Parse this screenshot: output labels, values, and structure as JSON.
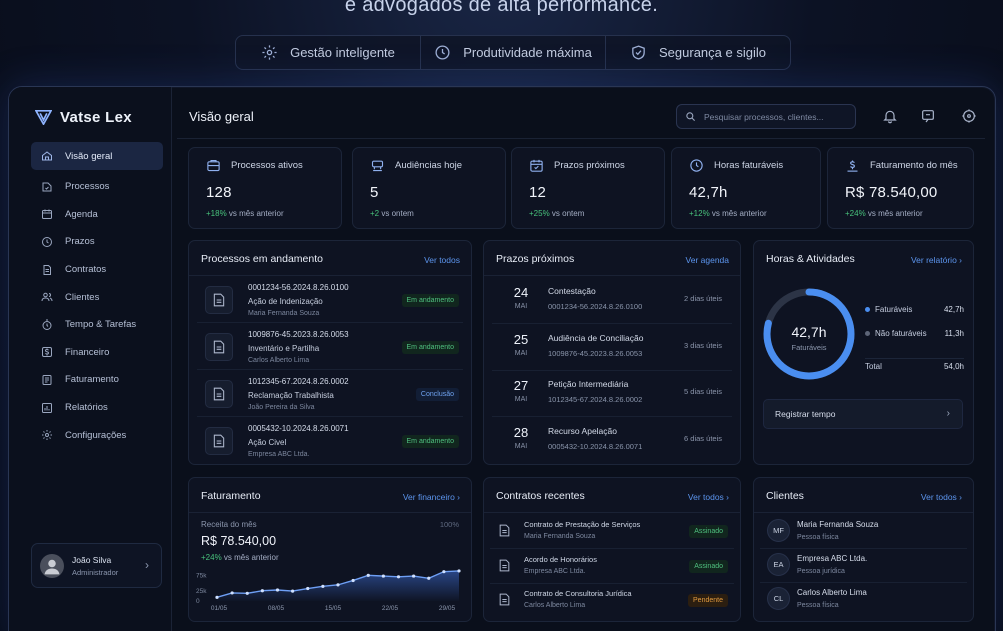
{
  "hero": {
    "subtitle": "e advogados de alta performance.",
    "features": [
      {
        "label": "Gestão inteligente",
        "icon": "gear-icon"
      },
      {
        "label": "Produtividade máxima",
        "icon": "target-icon"
      },
      {
        "label": "Segurança e sigilo",
        "icon": "shield-check-icon"
      }
    ]
  },
  "brand": {
    "name": "Vatse Lex"
  },
  "sidebar": {
    "items": [
      {
        "label": "Visão geral",
        "icon": "home-icon",
        "active": true
      },
      {
        "label": "Processos",
        "icon": "folder-icon"
      },
      {
        "label": "Agenda",
        "icon": "calendar-icon"
      },
      {
        "label": "Prazos",
        "icon": "clock-icon"
      },
      {
        "label": "Contratos",
        "icon": "document-icon"
      },
      {
        "label": "Clientes",
        "icon": "users-icon"
      },
      {
        "label": "Tempo & Tarefas",
        "icon": "timer-icon"
      },
      {
        "label": "Financeiro",
        "icon": "dollar-icon"
      },
      {
        "label": "Faturamento",
        "icon": "invoice-icon"
      },
      {
        "label": "Relatórios",
        "icon": "bar-chart-icon"
      },
      {
        "label": "Configurações",
        "icon": "settings-icon"
      }
    ],
    "user": {
      "name": "João Silva",
      "role": "Administrador"
    }
  },
  "header": {
    "title": "Visão geral",
    "search_placeholder": "Pesquisar processos, clientes..."
  },
  "stats": [
    {
      "label": "Processos ativos",
      "value": "128",
      "delta": "+18%",
      "delta_text": "vs mês anterior",
      "icon": "briefcase-icon"
    },
    {
      "label": "Audiências hoje",
      "value": "5",
      "delta": "+2",
      "delta_text": "vs ontem",
      "icon": "gavel-icon"
    },
    {
      "label": "Prazos próximos",
      "value": "12",
      "delta": "+25%",
      "delta_text": "vs ontem",
      "icon": "calendar-check-icon"
    },
    {
      "label": "Horas faturáveis",
      "value": "42,7h",
      "delta": "+12%",
      "delta_text": "vs mês anterior",
      "icon": "clock-icon"
    },
    {
      "label": "Faturamento do mês",
      "value": "R$ 78.540,00",
      "delta": "+24%",
      "delta_text": "vs mês anterior",
      "icon": "money-icon"
    }
  ],
  "processes": {
    "title": "Processos em andamento",
    "link": "Ver todos",
    "rows": [
      {
        "number": "0001234-56.2024.8.26.0100",
        "title": "Ação de Indenização",
        "client": "Maria Fernanda Souza",
        "status": "Em andamento",
        "tone": "green"
      },
      {
        "number": "1009876-45.2023.8.26.0053",
        "title": "Inventário e Partilha",
        "client": "Carlos Alberto Lima",
        "status": "Em andamento",
        "tone": "green"
      },
      {
        "number": "1012345-67.2024.8.26.0002",
        "title": "Reclamação Trabalhista",
        "client": "João Pereira da Silva",
        "status": "Conclusão",
        "tone": "blue"
      },
      {
        "number": "0005432-10.2024.8.26.0071",
        "title": "Ação Civel",
        "client": "Empresa ABC Ltda.",
        "status": "Em andamento",
        "tone": "green"
      }
    ]
  },
  "deadlines": {
    "title": "Prazos próximos",
    "link": "Ver agenda",
    "rows": [
      {
        "day": "24",
        "month": "MAI",
        "title": "Contestação",
        "process": "0001234-56.2024.8.26.0100",
        "days": "2 dias úteis"
      },
      {
        "day": "25",
        "month": "MAI",
        "title": "Audiência de Conciliação",
        "process": "1009876-45.2023.8.26.0053",
        "days": "3 dias úteis"
      },
      {
        "day": "27",
        "month": "MAI",
        "title": "Petição Intermediária",
        "process": "1012345-67.2024.8.26.0002",
        "days": "5 dias úteis"
      },
      {
        "day": "28",
        "month": "MAI",
        "title": "Recurso Apelação",
        "process": "0005432-10.2024.8.26.0071",
        "days": "6 dias úteis"
      }
    ]
  },
  "hours": {
    "title": "Horas & Atividades",
    "link": "Ver relatório ›",
    "center_value": "42,7h",
    "center_label": "Faturáveis",
    "billable_fraction": 0.79,
    "legend": [
      {
        "label": "Faturáveis",
        "value": "42,7h",
        "color": "#4a8ef0"
      },
      {
        "label": "Não faturáveis",
        "value": "11,3h",
        "color": "#5d6578"
      }
    ],
    "total_label": "Total",
    "total_value": "54,0h",
    "button": "Registrar tempo"
  },
  "billing": {
    "title": "Faturamento",
    "link": "Ver financeiro ›",
    "label": "Receita do mês",
    "value": "R$ 78.540,00",
    "delta": "+24%",
    "delta_text": "vs mês anterior",
    "pct_label": "100%",
    "chart_data": {
      "type": "line",
      "x_ticks": [
        "01/05",
        "08/05",
        "15/05",
        "22/05",
        "29/05"
      ],
      "y_ticks": [
        "75k",
        "25k",
        "0"
      ],
      "values": [
        10,
        22,
        21,
        28,
        30,
        27,
        34,
        40,
        44,
        56,
        70,
        68,
        66,
        68,
        62,
        80,
        82
      ],
      "ymax": 90
    }
  },
  "contracts": {
    "title": "Contratos recentes",
    "link": "Ver todos ›",
    "rows": [
      {
        "title": "Contrato de Prestação de Serviços",
        "client": "Maria Fernanda Souza",
        "status": "Assinado",
        "tone": "green"
      },
      {
        "title": "Acordo de Honorários",
        "client": "Empresa ABC Ltda.",
        "status": "Assinado",
        "tone": "green"
      },
      {
        "title": "Contrato de Consultoria Jurídica",
        "client": "Carlos Alberto Lima",
        "status": "Pendente",
        "tone": "orange"
      }
    ]
  },
  "clients": {
    "title": "Clientes",
    "link": "Ver todos ›",
    "rows": [
      {
        "initials": "MF",
        "name": "Maria Fernanda Souza",
        "type": "Pessoa física"
      },
      {
        "initials": "EA",
        "name": "Empresa ABC Ltda.",
        "type": "Pessoa jurídica"
      },
      {
        "initials": "CL",
        "name": "Carlos Alberto Lima",
        "type": "Pessoa física"
      }
    ]
  }
}
